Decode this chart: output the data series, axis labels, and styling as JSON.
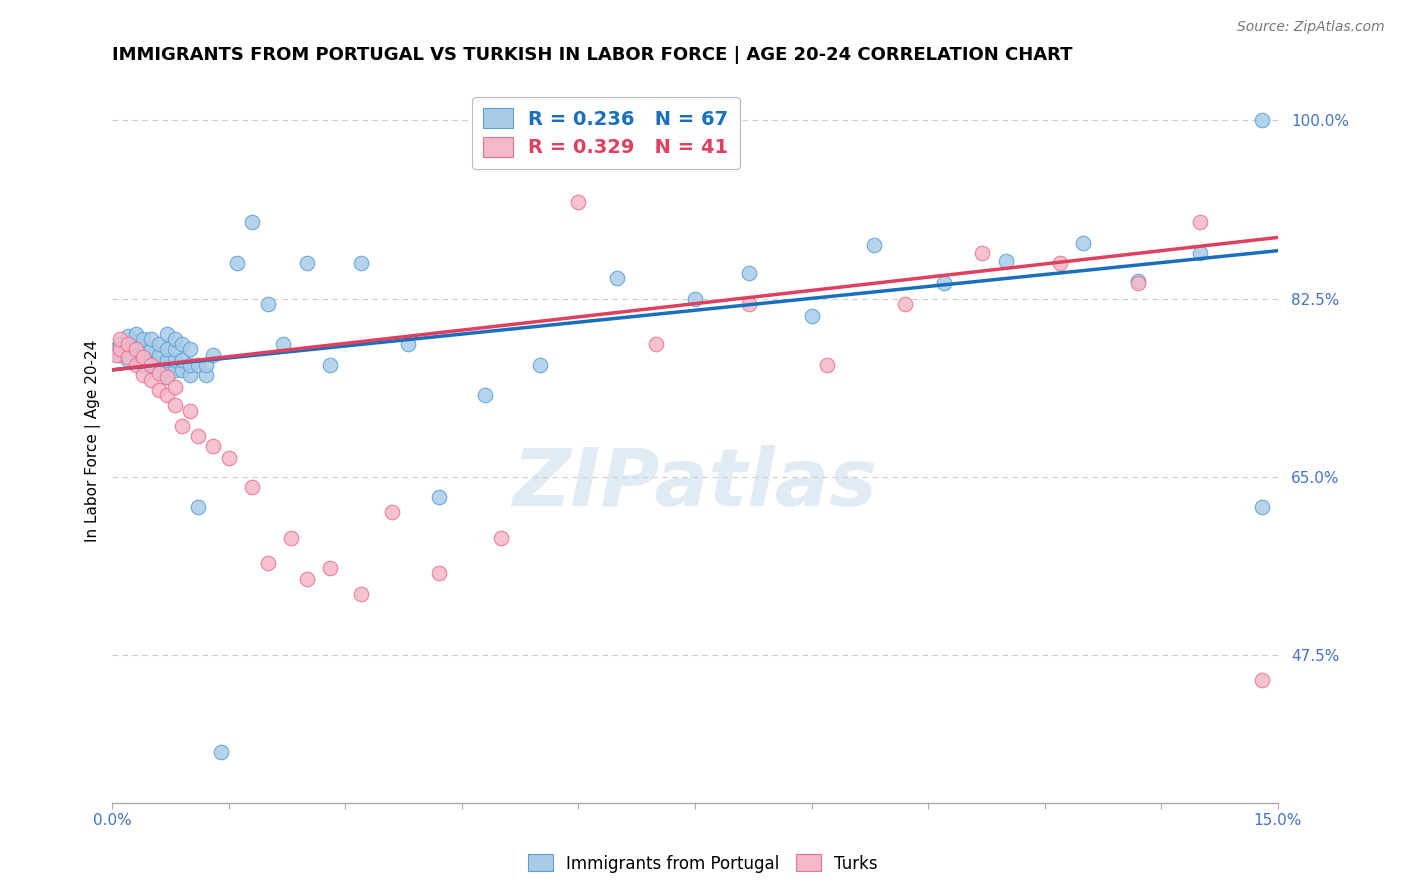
{
  "title": "IMMIGRANTS FROM PORTUGAL VS TURKISH IN LABOR FORCE | AGE 20-24 CORRELATION CHART",
  "source": "Source: ZipAtlas.com",
  "ylabel": "In Labor Force | Age 20-24",
  "x_min": 0.0,
  "x_max": 0.15,
  "y_min": 0.33,
  "y_max": 1.04,
  "y_ticks": [
    0.475,
    0.65,
    0.825,
    1.0
  ],
  "y_tick_labels": [
    "47.5%",
    "65.0%",
    "82.5%",
    "100.0%"
  ],
  "legend_blue_R": "0.236",
  "legend_blue_N": "67",
  "legend_pink_R": "0.329",
  "legend_pink_N": "41",
  "blue_color": "#a8cce8",
  "pink_color": "#f5b8c8",
  "blue_edge_color": "#5a9fd4",
  "pink_edge_color": "#e87090",
  "blue_line_color": "#1a6fbd",
  "pink_line_color": "#e04060",
  "legend_blue_color": "#1a6fbd",
  "legend_pink_color": "#e04060",
  "legend_N_color": "#22aa22",
  "watermark": "ZIPatlas",
  "title_fontsize": 13,
  "axis_label_fontsize": 11,
  "tick_fontsize": 11,
  "legend_fontsize": 14,
  "source_fontsize": 10,
  "grid_color": "#cccccc",
  "tick_color": "#4472c4",
  "background_color": "#ffffff",
  "blue_scatter_x": [
    0.0005,
    0.001,
    0.001,
    0.0015,
    0.002,
    0.002,
    0.002,
    0.003,
    0.003,
    0.003,
    0.003,
    0.004,
    0.004,
    0.004,
    0.004,
    0.005,
    0.005,
    0.005,
    0.005,
    0.006,
    0.006,
    0.006,
    0.006,
    0.007,
    0.007,
    0.007,
    0.007,
    0.007,
    0.008,
    0.008,
    0.008,
    0.008,
    0.009,
    0.009,
    0.009,
    0.01,
    0.01,
    0.01,
    0.011,
    0.011,
    0.012,
    0.012,
    0.013,
    0.014,
    0.016,
    0.018,
    0.02,
    0.022,
    0.025,
    0.028,
    0.032,
    0.038,
    0.042,
    0.048,
    0.055,
    0.065,
    0.075,
    0.082,
    0.09,
    0.098,
    0.107,
    0.115,
    0.125,
    0.132,
    0.14,
    0.148,
    0.148
  ],
  "blue_scatter_y": [
    0.775,
    0.77,
    0.78,
    0.775,
    0.765,
    0.778,
    0.788,
    0.77,
    0.775,
    0.782,
    0.79,
    0.76,
    0.768,
    0.775,
    0.785,
    0.758,
    0.765,
    0.775,
    0.785,
    0.755,
    0.762,
    0.77,
    0.78,
    0.748,
    0.755,
    0.765,
    0.775,
    0.79,
    0.755,
    0.765,
    0.775,
    0.785,
    0.755,
    0.765,
    0.78,
    0.75,
    0.76,
    0.775,
    0.62,
    0.76,
    0.75,
    0.76,
    0.77,
    0.38,
    0.86,
    0.9,
    0.82,
    0.78,
    0.86,
    0.76,
    0.86,
    0.78,
    0.63,
    0.73,
    0.76,
    0.845,
    0.825,
    0.85,
    0.808,
    0.878,
    0.84,
    0.862,
    0.88,
    0.842,
    0.87,
    1.0,
    0.62
  ],
  "pink_scatter_x": [
    0.0005,
    0.001,
    0.001,
    0.002,
    0.002,
    0.003,
    0.003,
    0.004,
    0.004,
    0.005,
    0.005,
    0.006,
    0.006,
    0.007,
    0.007,
    0.008,
    0.008,
    0.009,
    0.01,
    0.011,
    0.013,
    0.015,
    0.018,
    0.02,
    0.023,
    0.025,
    0.028,
    0.032,
    0.036,
    0.042,
    0.05,
    0.06,
    0.07,
    0.082,
    0.092,
    0.102,
    0.112,
    0.122,
    0.132,
    0.14,
    0.148
  ],
  "pink_scatter_y": [
    0.77,
    0.775,
    0.785,
    0.768,
    0.78,
    0.76,
    0.775,
    0.75,
    0.768,
    0.745,
    0.76,
    0.735,
    0.752,
    0.73,
    0.748,
    0.72,
    0.738,
    0.7,
    0.715,
    0.69,
    0.68,
    0.668,
    0.64,
    0.565,
    0.59,
    0.55,
    0.56,
    0.535,
    0.615,
    0.555,
    0.59,
    0.92,
    0.78,
    0.82,
    0.76,
    0.82,
    0.87,
    0.86,
    0.84,
    0.9,
    0.45
  ],
  "blue_trend_x0": 0.0,
  "blue_trend_x1": 0.15,
  "blue_trend_y0": 0.755,
  "blue_trend_y1": 0.872,
  "pink_trend_x0": 0.0,
  "pink_trend_x1": 0.15,
  "pink_trend_y0": 0.755,
  "pink_trend_y1": 0.885
}
